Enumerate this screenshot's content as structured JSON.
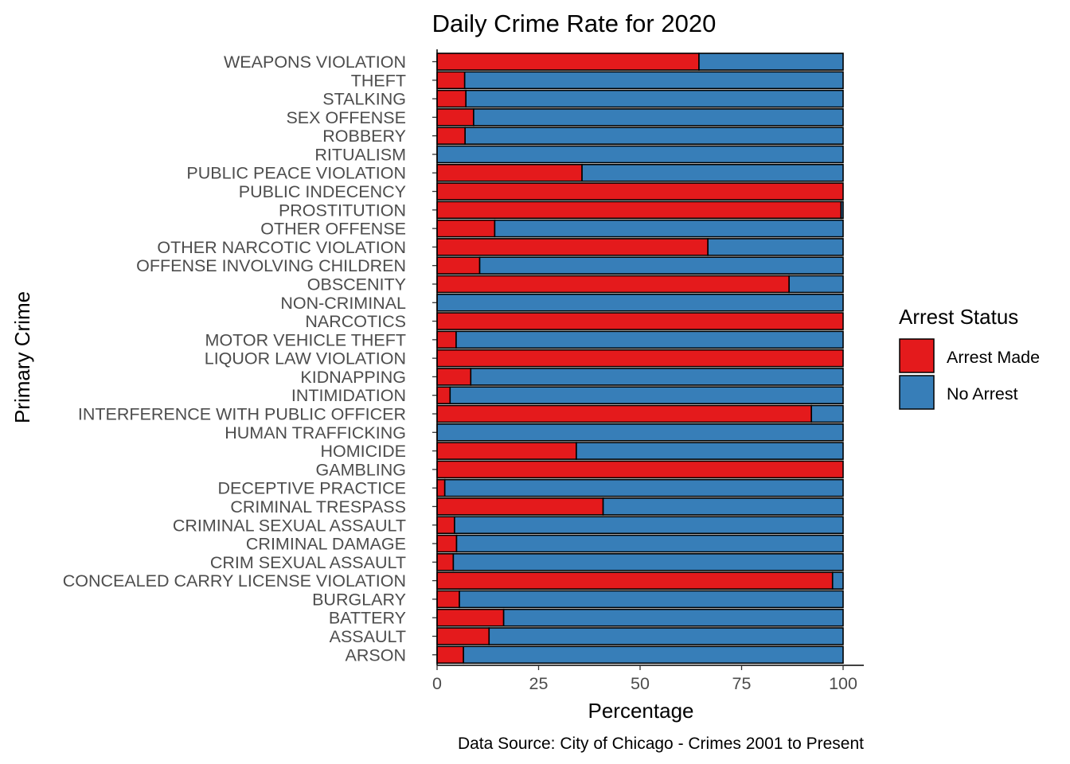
{
  "chart_data": {
    "type": "bar",
    "orientation": "horizontal",
    "stacked": true,
    "title": "Daily Crime Rate for 2020",
    "xlabel": "Percentage",
    "ylabel": "Primary Crime",
    "xlim": [
      0,
      100
    ],
    "xticks": [
      "0",
      "25",
      "50",
      "75",
      "100"
    ],
    "grid": false,
    "legend": {
      "title": "Arrest Status",
      "position": "right",
      "entries": [
        "Arrest Made",
        "No Arrest"
      ]
    },
    "caption": "Data Source: City of Chicago - Crimes 2001 to Present",
    "colors": {
      "Arrest Made": "#E41A1C",
      "No Arrest": "#377EB8",
      "outline": "#000000"
    },
    "categories": [
      "WEAPONS VIOLATION",
      "THEFT",
      "STALKING",
      "SEX OFFENSE",
      "ROBBERY",
      "RITUALISM",
      "PUBLIC PEACE VIOLATION",
      "PUBLIC INDECENCY",
      "PROSTITUTION",
      "OTHER OFFENSE",
      "OTHER NARCOTIC VIOLATION",
      "OFFENSE INVOLVING CHILDREN",
      "OBSCENITY",
      "NON-CRIMINAL",
      "NARCOTICS",
      "MOTOR VEHICLE THEFT",
      "LIQUOR LAW VIOLATION",
      "KIDNAPPING",
      "INTIMIDATION",
      "INTERFERENCE WITH PUBLIC OFFICER",
      "HUMAN TRAFFICKING",
      "HOMICIDE",
      "GAMBLING",
      "DECEPTIVE PRACTICE",
      "CRIMINAL TRESPASS",
      "CRIMINAL SEXUAL ASSAULT",
      "CRIMINAL DAMAGE",
      "CRIM SEXUAL ASSAULT",
      "CONCEALED CARRY LICENSE VIOLATION",
      "BURGLARY",
      "BATTERY",
      "ASSAULT",
      "ARSON"
    ],
    "series": [
      {
        "name": "Arrest Made",
        "values": [
          64.5,
          6.8,
          7.1,
          9.0,
          6.9,
          0,
          35.7,
          100,
          99.5,
          14.2,
          66.7,
          10.5,
          86.7,
          0,
          100,
          4.7,
          100,
          8.3,
          3.2,
          92.2,
          0,
          34.3,
          100,
          1.9,
          40.9,
          4.3,
          4.8,
          4.0,
          97.4,
          5.5,
          16.4,
          12.8,
          6.5
        ]
      },
      {
        "name": "No Arrest",
        "values": [
          35.5,
          93.2,
          92.9,
          91.0,
          93.1,
          100,
          64.3,
          0,
          0.5,
          85.8,
          33.3,
          89.5,
          13.3,
          100,
          0,
          95.3,
          0,
          91.7,
          96.8,
          7.8,
          100,
          65.7,
          0,
          98.1,
          59.1,
          95.7,
          95.2,
          96.0,
          2.6,
          94.5,
          83.6,
          87.2,
          93.5
        ]
      }
    ]
  }
}
